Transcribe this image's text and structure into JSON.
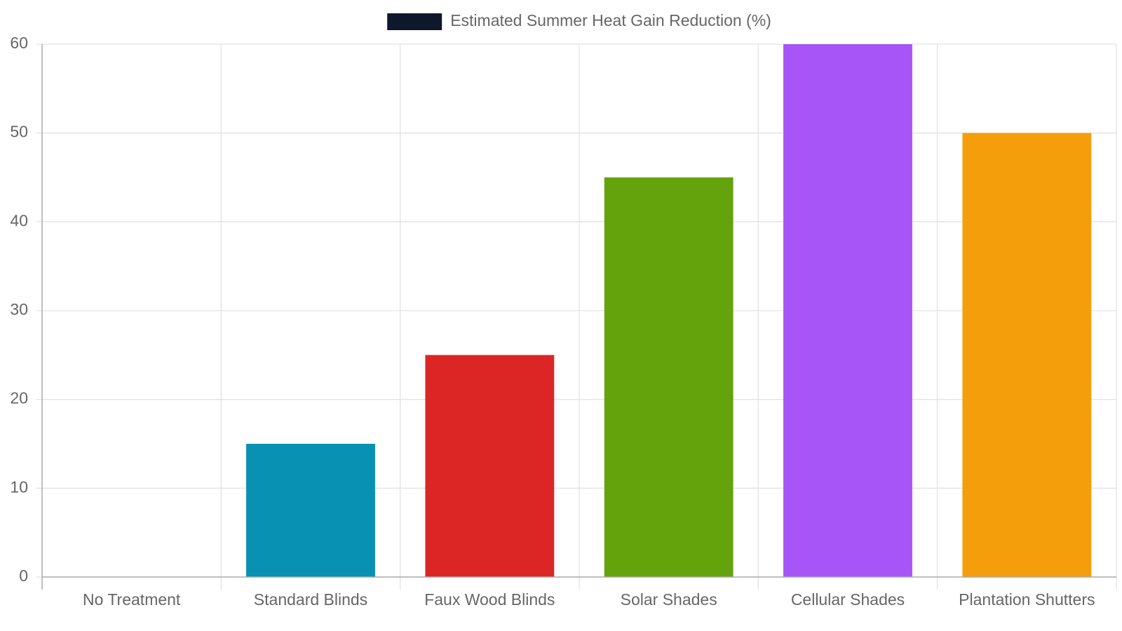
{
  "chart_data": {
    "type": "bar",
    "categories": [
      "No Treatment",
      "Standard Blinds",
      "Faux Wood Blinds",
      "Solar Shades",
      "Cellular Shades",
      "Plantation Shutters"
    ],
    "series": [
      {
        "name": "Estimated Summer Heat Gain Reduction (%)",
        "color": "#0f172a",
        "values": [
          0,
          15,
          25,
          45,
          60,
          50
        ],
        "colors": [
          "#64748b",
          "#0891b2",
          "#dc2626",
          "#65a30d",
          "#a855f7",
          "#f59e0b"
        ]
      }
    ],
    "ylim": [
      0,
      60
    ],
    "yticks": [
      0,
      10,
      20,
      30,
      40,
      50,
      60
    ],
    "grid": true,
    "legend": "top"
  }
}
